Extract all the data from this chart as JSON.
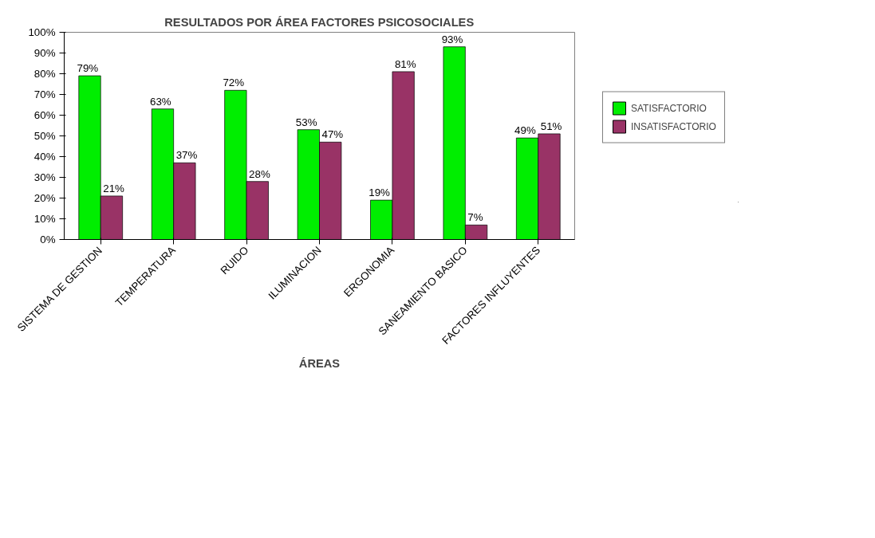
{
  "chart_data": {
    "type": "bar",
    "title": "RESULTADOS POR ÁREA FACTORES PSICOSOCIALES",
    "xlabel": "ÁREAS",
    "categories": [
      "SISTEMA DE GESTION",
      "TEMPERATURA",
      "RUIDO",
      "ILUMINACION",
      "ERGONOMIA",
      "SANEAMIENTO BASICO",
      "FACTORES INFLUYENTES"
    ],
    "series": [
      {
        "name": "SATISFACTORIO",
        "color": "#00ee00",
        "values": [
          79,
          63,
          72,
          53,
          19,
          93,
          49
        ],
        "value_labels": [
          "79%",
          "63%",
          "72%",
          "53%",
          "19%",
          "93%",
          "49%"
        ]
      },
      {
        "name": "INSATISFACTORIO",
        "color": "#993366",
        "values": [
          21,
          37,
          28,
          47,
          81,
          7,
          51
        ],
        "value_labels": [
          "21%",
          "37%",
          "28%",
          "47%",
          "81%",
          "7%",
          "51%"
        ]
      }
    ],
    "ylim": [
      0,
      100
    ],
    "yticks": [
      {
        "value": 0,
        "label": "0%"
      },
      {
        "value": 10,
        "label": "10%"
      },
      {
        "value": 20,
        "label": "20%"
      },
      {
        "value": 30,
        "label": "30%"
      },
      {
        "value": 40,
        "label": "40%"
      },
      {
        "value": 50,
        "label": "50%"
      },
      {
        "value": 60,
        "label": "60%"
      },
      {
        "value": 70,
        "label": "70%"
      },
      {
        "value": 80,
        "label": "80%"
      },
      {
        "value": 90,
        "label": "90%"
      },
      {
        "value": 100,
        "label": "100%"
      }
    ],
    "grid": false,
    "legend": "right"
  }
}
